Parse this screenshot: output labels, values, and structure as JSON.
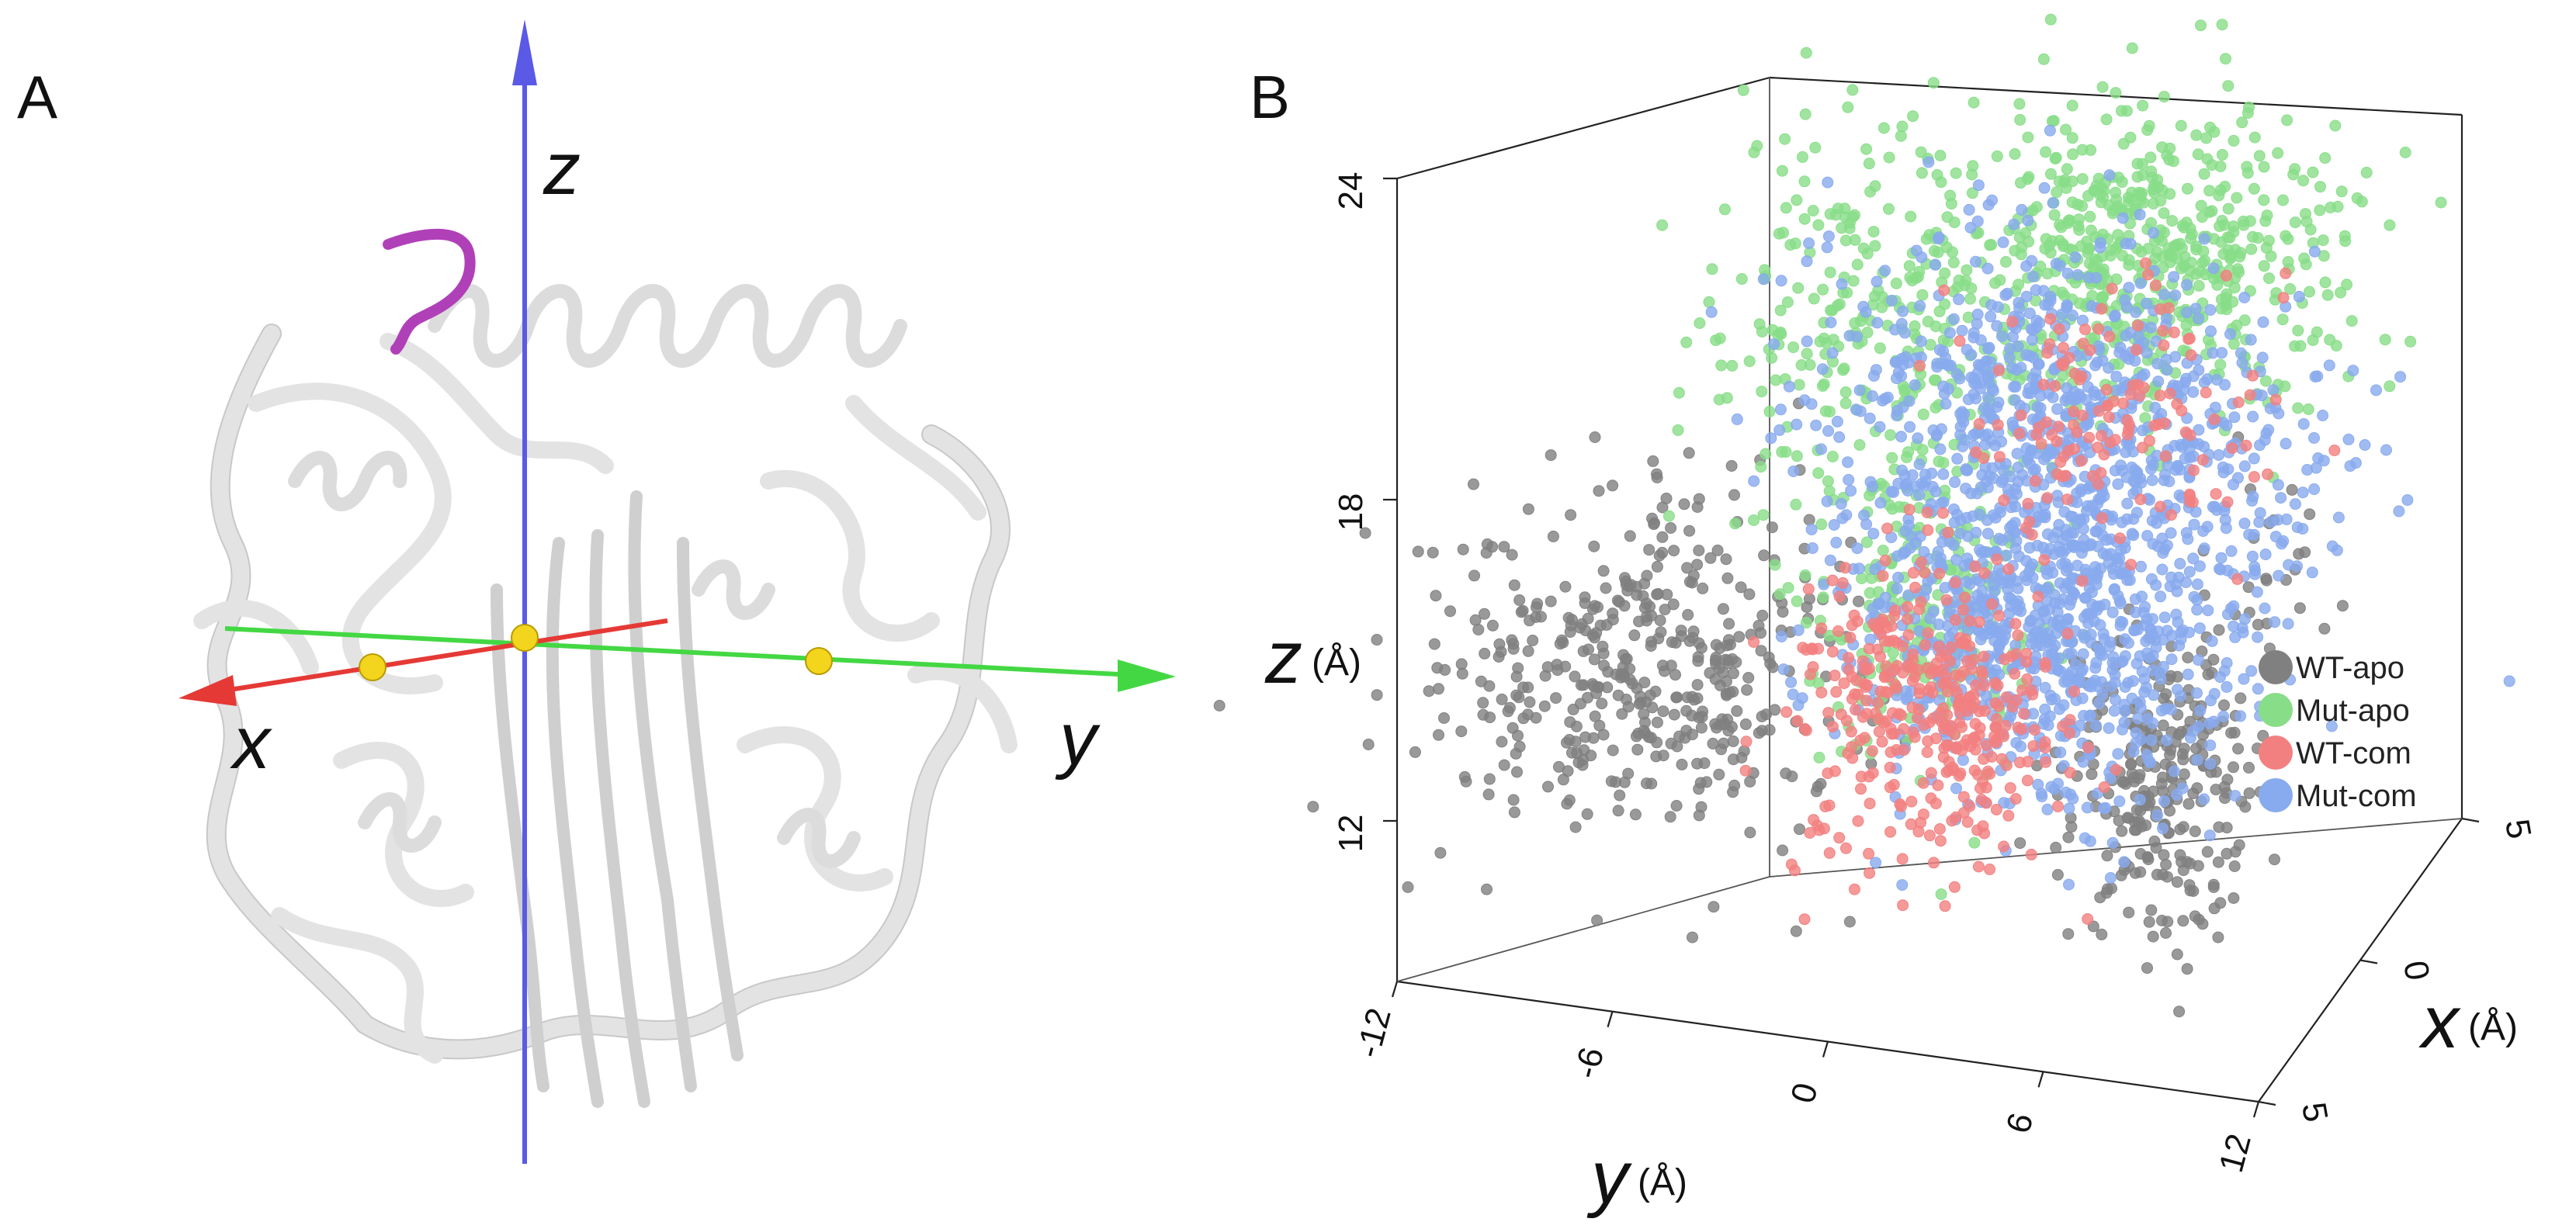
{
  "panels": {
    "a_label": "A",
    "b_label": "B"
  },
  "protein_view": {
    "axis_labels": {
      "x": "x",
      "y": "y",
      "z": "z"
    },
    "axis_colors": {
      "x": "#e53935",
      "y": "#43d843",
      "z": "#5a5ae6"
    },
    "ribbon_color": "#d9d9d9",
    "loop_highlight_color": "#b040b8",
    "marker_color": "#f2d51c"
  },
  "chart_data": {
    "type": "scatter3d",
    "axes": {
      "x": {
        "label": "x",
        "unit": "(Å)",
        "ticks": [
          "5",
          "0",
          "5"
        ],
        "range": [
          -5,
          5
        ]
      },
      "y": {
        "label": "y",
        "unit": "(Å)",
        "ticks": [
          "-12",
          "-6",
          "0",
          "6",
          "12"
        ],
        "range": [
          -12,
          12
        ]
      },
      "z": {
        "label": "z",
        "unit": "(Å)",
        "ticks": [
          "12",
          "18",
          "24"
        ],
        "range": [
          9,
          24
        ]
      }
    },
    "legend_position": "right",
    "series": [
      {
        "name": "WT-apo",
        "color": "#808080",
        "clusters": [
          {
            "x": 0.0,
            "y": -8.0,
            "z": 12.5,
            "spread": [
              1.6,
              2.8,
              1.4
            ],
            "n": 450
          },
          {
            "x": 0.0,
            "y": 6.5,
            "z": 11.5,
            "spread": [
              0.8,
              1.2,
              1.3
            ],
            "n": 260
          },
          {
            "x": 0.0,
            "y": 9.0,
            "z": 16.0,
            "spread": [
              0.6,
              1.2,
              0.9
            ],
            "n": 30
          }
        ]
      },
      {
        "name": "Mut-apo",
        "color": "#88dd88",
        "clusters": [
          {
            "x": 0.0,
            "y": 6.0,
            "z": 21.5,
            "spread": [
              1.4,
              2.6,
              1.2
            ],
            "n": 600
          },
          {
            "x": 0.0,
            "y": -2.0,
            "z": 19.5,
            "spread": [
              1.2,
              2.2,
              2.0
            ],
            "n": 260
          },
          {
            "x": 0.0,
            "y": 0.0,
            "z": 14.5,
            "spread": [
              1.0,
              1.6,
              1.5
            ],
            "n": 220
          }
        ]
      },
      {
        "name": "WT-com",
        "color": "#f28080",
        "clusters": [
          {
            "x": 0.0,
            "y": 0.0,
            "z": 12.5,
            "spread": [
              1.0,
              1.8,
              1.2
            ],
            "n": 380
          },
          {
            "x": 0.0,
            "y": 5.0,
            "z": 18.5,
            "spread": [
              1.0,
              2.0,
              1.2
            ],
            "n": 140
          }
        ]
      },
      {
        "name": "Mut-com",
        "color": "#88aaee",
        "clusters": [
          {
            "x": 0.0,
            "y": 3.5,
            "z": 14.5,
            "spread": [
              1.4,
              2.6,
              1.6
            ],
            "n": 900
          },
          {
            "x": 0.0,
            "y": 3.0,
            "z": 18.5,
            "spread": [
              1.4,
              3.0,
              1.4
            ],
            "n": 600
          },
          {
            "x": 0.0,
            "y": 9.5,
            "z": 18.5,
            "spread": [
              1.0,
              1.8,
              1.2
            ],
            "n": 80
          }
        ]
      }
    ]
  }
}
